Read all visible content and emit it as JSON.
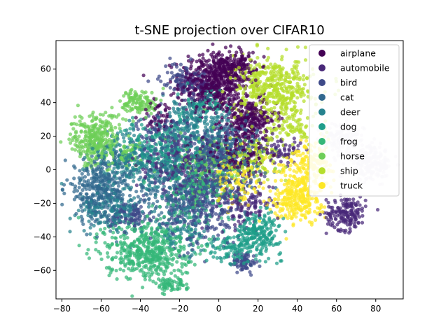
{
  "chart_data": {
    "type": "scatter",
    "title": "t-SNE projection over CIFAR10",
    "xlabel": "",
    "ylabel": "",
    "xlim": [
      -83,
      94
    ],
    "ylim": [
      -77,
      77
    ],
    "x_ticks": [
      -80,
      -60,
      -40,
      -20,
      0,
      20,
      40,
      60,
      80
    ],
    "y_ticks": [
      -60,
      -40,
      -20,
      0,
      20,
      40,
      60
    ],
    "x_tick_labels": [
      "−80",
      "−60",
      "−40",
      "−20",
      "0",
      "20",
      "40",
      "60",
      "80"
    ],
    "y_tick_labels": [
      "−60",
      "−40",
      "−20",
      "0",
      "20",
      "40",
      "60"
    ],
    "grid": false,
    "legend_position": "top-right",
    "series": [
      {
        "name": "airplane",
        "color": "#440154",
        "clusters": [
          {
            "x": -2,
            "y": 52,
            "sx": 9,
            "sy": 9,
            "n": 520
          },
          {
            "x": 8,
            "y": 62,
            "sx": 5,
            "sy": 4,
            "n": 120
          },
          {
            "x": 15,
            "y": 30,
            "sx": 7,
            "sy": 6,
            "n": 260
          },
          {
            "x": 10,
            "y": 10,
            "sx": 8,
            "sy": 7,
            "n": 140
          },
          {
            "x": -30,
            "y": 32,
            "sx": 5,
            "sy": 5,
            "n": 50
          }
        ]
      },
      {
        "name": "automobile",
        "color": "#482878",
        "clusters": [
          {
            "x": 65,
            "y": -26,
            "sx": 5,
            "sy": 5,
            "n": 170
          },
          {
            "x": 14,
            "y": -20,
            "sx": 7,
            "sy": 7,
            "n": 130
          },
          {
            "x": -22,
            "y": 4,
            "sx": 10,
            "sy": 9,
            "n": 170
          },
          {
            "x": -12,
            "y": 50,
            "sx": 5,
            "sy": 5,
            "n": 60
          },
          {
            "x": 32,
            "y": 12,
            "sx": 5,
            "sy": 4,
            "n": 60
          }
        ]
      },
      {
        "name": "bird",
        "color": "#3e4a89",
        "clusters": [
          {
            "x": -18,
            "y": 54,
            "sx": 6,
            "sy": 5,
            "n": 90
          },
          {
            "x": -30,
            "y": 22,
            "sx": 6,
            "sy": 6,
            "n": 80
          },
          {
            "x": -8,
            "y": -20,
            "sx": 10,
            "sy": 12,
            "n": 320
          },
          {
            "x": 13,
            "y": -55,
            "sx": 3,
            "sy": 3,
            "n": 70
          },
          {
            "x": -45,
            "y": -27,
            "sx": 5,
            "sy": 4,
            "n": 100
          },
          {
            "x": -2,
            "y": 8,
            "sx": 10,
            "sy": 9,
            "n": 180
          }
        ]
      },
      {
        "name": "cat",
        "color": "#31688e",
        "clusters": [
          {
            "x": -60,
            "y": -12,
            "sx": 9,
            "sy": 10,
            "n": 380
          },
          {
            "x": -20,
            "y": -10,
            "sx": 11,
            "sy": 12,
            "n": 380
          },
          {
            "x": 3,
            "y": 10,
            "sx": 10,
            "sy": 10,
            "n": 260
          }
        ]
      },
      {
        "name": "deer",
        "color": "#26828e",
        "clusters": [
          {
            "x": -44,
            "y": 5,
            "sx": 10,
            "sy": 9,
            "n": 260
          },
          {
            "x": -12,
            "y": 28,
            "sx": 9,
            "sy": 8,
            "n": 220
          },
          {
            "x": -55,
            "y": -25,
            "sx": 8,
            "sy": 6,
            "n": 140
          },
          {
            "x": -18,
            "y": -35,
            "sx": 8,
            "sy": 7,
            "n": 100
          }
        ]
      },
      {
        "name": "dog",
        "color": "#1f9e89",
        "clusters": [
          {
            "x": 20,
            "y": -38,
            "sx": 6,
            "sy": 6,
            "n": 230
          },
          {
            "x": -28,
            "y": 12,
            "sx": 10,
            "sy": 10,
            "n": 220
          },
          {
            "x": 5,
            "y": -48,
            "sx": 6,
            "sy": 5,
            "n": 90
          },
          {
            "x": -5,
            "y": 40,
            "sx": 6,
            "sy": 5,
            "n": 60
          }
        ]
      },
      {
        "name": "frog",
        "color": "#35b779",
        "clusters": [
          {
            "x": -36,
            "y": -48,
            "sx": 11,
            "sy": 9,
            "n": 520
          },
          {
            "x": -25,
            "y": -68,
            "sx": 4,
            "sy": 2,
            "n": 60
          },
          {
            "x": -10,
            "y": -12,
            "sx": 10,
            "sy": 10,
            "n": 180
          }
        ]
      },
      {
        "name": "horse",
        "color": "#6ece58",
        "clusters": [
          {
            "x": -63,
            "y": 18,
            "sx": 6,
            "sy": 8,
            "n": 300
          },
          {
            "x": -40,
            "y": 40,
            "sx": 5,
            "sy": 4,
            "n": 120
          },
          {
            "x": -46,
            "y": 9,
            "sx": 4,
            "sy": 4,
            "n": 50
          },
          {
            "x": -3,
            "y": 2,
            "sx": 10,
            "sy": 9,
            "n": 120
          }
        ]
      },
      {
        "name": "ship",
        "color": "#b5de2b",
        "clusters": [
          {
            "x": 28,
            "y": 48,
            "sx": 10,
            "sy": 9,
            "n": 460
          },
          {
            "x": 18,
            "y": 8,
            "sx": 8,
            "sy": 8,
            "n": 140
          },
          {
            "x": 38,
            "y": 24,
            "sx": 5,
            "sy": 4,
            "n": 60
          }
        ]
      },
      {
        "name": "truck",
        "color": "#fde725",
        "clusters": [
          {
            "x": 40,
            "y": -15,
            "sx": 6,
            "sy": 8,
            "n": 300
          },
          {
            "x": 48,
            "y": 5,
            "sx": 5,
            "sy": 6,
            "n": 140
          },
          {
            "x": 10,
            "y": -5,
            "sx": 9,
            "sy": 9,
            "n": 120
          }
        ]
      },
      {
        "name": "",
        "color": "#dcd6e6",
        "clusters": [
          {
            "x": 78,
            "y": 4,
            "sx": 5,
            "sy": 5,
            "n": 200
          },
          {
            "x": 64,
            "y": 18,
            "sx": 5,
            "sy": 5,
            "n": 160
          }
        ]
      }
    ]
  }
}
